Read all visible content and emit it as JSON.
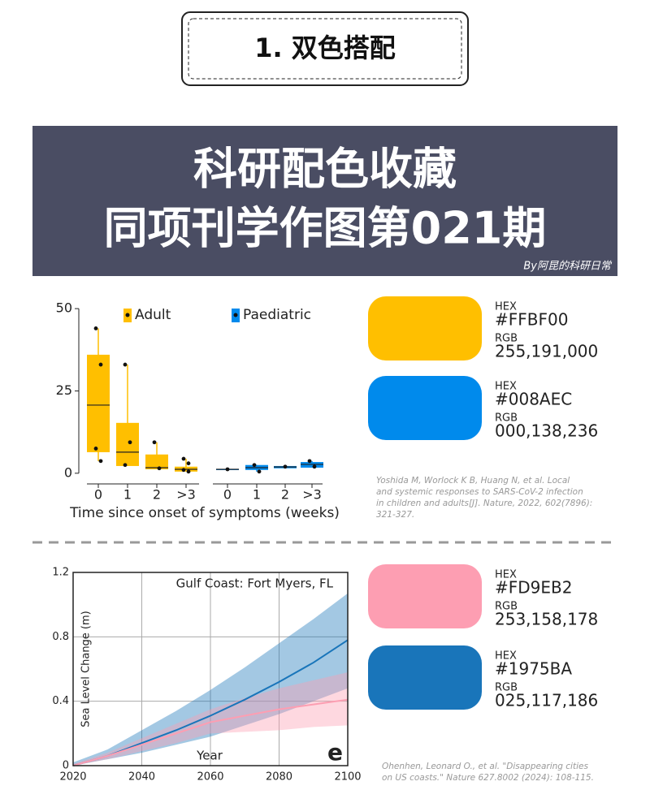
{
  "header": {
    "title": "1. 双色搭配"
  },
  "banner": {
    "lines": [
      "科研配色收藏",
      "同项刊学作图第021期"
    ],
    "credit": "By阿昆的科研日常"
  },
  "chart_data": [
    {
      "type": "box",
      "xlabel": "Time since onset of symptoms (weeks)",
      "ylim": [
        -2.5,
        52
      ],
      "yticks": [
        0,
        25,
        50
      ],
      "series": [
        {
          "name": "Adult",
          "color": "#FFBF00",
          "categories": [
            "0",
            "1",
            "2",
            ">3"
          ],
          "boxes": [
            {
              "low": 3.7,
              "q1": 6.4,
              "median": 20.7,
              "q3": 36,
              "high": 44,
              "points": [
                44,
                33,
                7.5,
                3.7
              ]
            },
            {
              "low": 2.2,
              "q1": 2.2,
              "median": 6.4,
              "q3": 15.3,
              "high": 33,
              "points": [
                33,
                9.4,
                2.5
              ]
            },
            {
              "low": 1.2,
              "q1": 1.2,
              "median": 1.7,
              "q3": 5.7,
              "high": 9.4,
              "points": [
                9.4,
                1.5
              ]
            },
            {
              "low": 0.5,
              "q1": 0.5,
              "median": 1.2,
              "q3": 2,
              "high": 4.4,
              "points": [
                4.4,
                3,
                1,
                0.5
              ]
            }
          ]
        },
        {
          "name": "Paediatric",
          "color": "#008AEC",
          "categories": [
            "0",
            "1",
            "2",
            ">3"
          ],
          "boxes": [
            {
              "low": 1.2,
              "q1": 1.2,
              "median": 1.2,
              "q3": 1.2,
              "high": 1.2,
              "points": [
                1.2
              ]
            },
            {
              "low": 0.5,
              "q1": 1,
              "median": 1.7,
              "q3": 2.5,
              "high": 2.5,
              "points": [
                2.5,
                0.5
              ]
            },
            {
              "low": 1.5,
              "q1": 1.5,
              "median": 1.9,
              "q3": 2.2,
              "high": 2.2,
              "points": [
                2
              ]
            },
            {
              "low": 1.7,
              "q1": 1.7,
              "median": 2.7,
              "q3": 3.4,
              "high": 3.7,
              "points": [
                3.7,
                2
              ]
            }
          ]
        }
      ]
    },
    {
      "type": "line",
      "annotation": "Gulf Coast: Fort Myers, FL",
      "panel_letter": "e",
      "xlabel": "Year",
      "ylabel": "Sea Level Change (m)",
      "xlim": [
        2020,
        2100
      ],
      "xticks": [
        2020,
        2040,
        2060,
        2080,
        2100
      ],
      "ylim": [
        0,
        1.2
      ],
      "yticks": [
        0,
        0.4,
        0.8,
        1.2
      ],
      "grid": true,
      "x": [
        2020,
        2030,
        2040,
        2050,
        2060,
        2070,
        2080,
        2090,
        2100
      ],
      "series": [
        {
          "color": "#1975BA",
          "values": [
            0,
            0.06,
            0.14,
            0.22,
            0.31,
            0.41,
            0.52,
            0.64,
            0.78
          ],
          "lower": [
            0,
            0.04,
            0.08,
            0.13,
            0.18,
            0.25,
            0.32,
            0.4,
            0.48
          ],
          "upper": [
            0.02,
            0.1,
            0.22,
            0.34,
            0.47,
            0.61,
            0.76,
            0.91,
            1.07
          ]
        },
        {
          "color": "#FD9EB2",
          "values": [
            0,
            0.06,
            0.13,
            0.2,
            0.27,
            0.31,
            0.35,
            0.38,
            0.41
          ],
          "lower": [
            0,
            0.04,
            0.09,
            0.14,
            0.2,
            0.21,
            0.22,
            0.24,
            0.25
          ],
          "upper": [
            0.01,
            0.08,
            0.17,
            0.26,
            0.35,
            0.42,
            0.48,
            0.53,
            0.58
          ]
        }
      ]
    }
  ],
  "swatches": [
    {
      "hex_label": "HEX",
      "hex": "#FFBF00",
      "rgb_label": "RGB",
      "rgb": "255,191,000"
    },
    {
      "hex_label": "HEX",
      "hex": "#008AEC",
      "rgb_label": "RGB",
      "rgb": "000,138,236"
    },
    {
      "hex_label": "HEX",
      "hex": "#FD9EB2",
      "rgb_label": "RGB",
      "rgb": "253,158,178"
    },
    {
      "hex_label": "HEX",
      "hex": "#1975BA",
      "rgb_label": "RGB",
      "rgb": "025,117,186"
    }
  ],
  "citations": [
    [
      "Yoshida M, Worlock K B, Huang N, et al. Local",
      "and systemic responses to SARS-CoV-2 infection",
      "in children and adults[J]. Nature, 2022, 602(7896):",
      "321-327."
    ],
    [
      "Ohenhen, Leonard O., et al. \"Disappearing cities",
      "on US coasts.\" Nature 627.8002 (2024): 108-115."
    ]
  ]
}
